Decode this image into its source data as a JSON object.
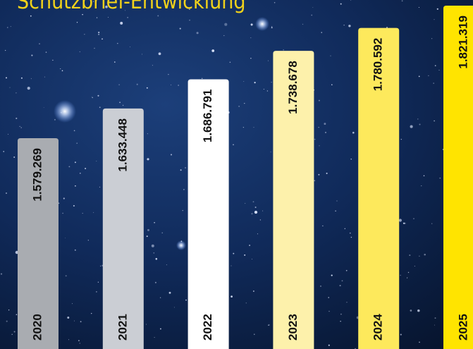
{
  "chart_data": {
    "type": "bar",
    "title": "Schutzbrief-Entwicklung",
    "categories": [
      "2020",
      "2021",
      "2022",
      "2023",
      "2024",
      "2025"
    ],
    "values": [
      1579269,
      1633448,
      1686791,
      1738678,
      1780592,
      1821319
    ],
    "value_labels": [
      "1.579.269",
      "1.633.448",
      "1.686.791",
      "1.738.678",
      "1.780.592",
      "1.821.319"
    ],
    "colors": [
      "#a9acb1",
      "#cbced4",
      "#ffffff",
      "#fdf1ab",
      "#fde95c",
      "#ffe400"
    ]
  }
}
